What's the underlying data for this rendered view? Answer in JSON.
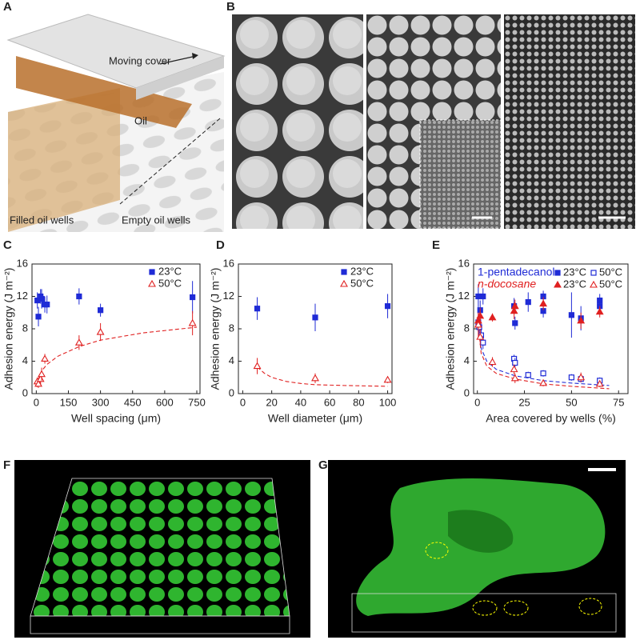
{
  "panels": {
    "a": {
      "label": "A",
      "cover": "Moving cover",
      "oil": "Oil",
      "filled": "Filled oil wells",
      "empty": "Empty oil wells"
    },
    "b": {
      "label": "B"
    },
    "c": {
      "label": "C"
    },
    "d": {
      "label": "D"
    },
    "e": {
      "label": "E"
    },
    "f": {
      "label": "F"
    },
    "g": {
      "label": "G"
    }
  },
  "chart_data": [
    {
      "type": "scatter",
      "x_label": "Well spacing (μm)",
      "y_label": "Adhesion energy (J m⁻²)",
      "xlim": [
        -20,
        765
      ],
      "xticks": [
        0,
        150,
        300,
        450,
        600,
        750
      ],
      "ylim": [
        0,
        16
      ],
      "yticks": [
        0,
        4,
        8,
        12,
        16
      ],
      "series": [
        {
          "name": "23°C",
          "color": "#1f2bd6",
          "marker": "square",
          "filled": true,
          "x": [
            5,
            10,
            20,
            25,
            40,
            50,
            200,
            300,
            730
          ],
          "values": [
            11.5,
            9.5,
            12,
            11.7,
            11,
            11,
            12,
            10.3,
            11.9
          ],
          "errors": [
            1,
            1.2,
            0.9,
            1.2,
            1,
            1.1,
            1,
            0.8,
            2
          ]
        },
        {
          "name": "50°C",
          "color": "#e02020",
          "marker": "triangle",
          "filled": false,
          "x": [
            5,
            10,
            20,
            25,
            40,
            200,
            300,
            730
          ],
          "values": [
            1.5,
            1.2,
            1.8,
            2.4,
            4.3,
            6.3,
            7.6,
            8.7
          ],
          "errors": [
            0.5,
            0.5,
            0.6,
            0.8,
            0.6,
            0.9,
            1.1,
            1.5
          ]
        }
      ],
      "fits": [
        {
          "color": "#e02020",
          "x": [
            3,
            10,
            25,
            50,
            100,
            200,
            300,
            500,
            750
          ],
          "values": [
            0.8,
            1.8,
            2.8,
            3.6,
            4.6,
            5.8,
            6.6,
            7.5,
            8.2
          ]
        }
      ]
    },
    {
      "type": "scatter",
      "x_label": "Well diameter (μm)",
      "y_label": "Adhesion energy (J m⁻²)",
      "xlim": [
        -3,
        103
      ],
      "xticks": [
        0,
        20,
        40,
        60,
        80,
        100
      ],
      "ylim": [
        0,
        16
      ],
      "yticks": [
        0,
        4,
        8,
        12,
        16
      ],
      "series": [
        {
          "name": "23°C",
          "color": "#1f2bd6",
          "marker": "square",
          "filled": true,
          "x": [
            10,
            50,
            100
          ],
          "values": [
            10.5,
            9.4,
            10.8
          ],
          "errors": [
            1.4,
            1.7,
            1.5
          ]
        },
        {
          "name": "50°C",
          "color": "#e02020",
          "marker": "triangle",
          "filled": false,
          "x": [
            10,
            50,
            100
          ],
          "values": [
            3.4,
            1.9,
            1.7
          ],
          "errors": [
            1,
            0.6,
            0.4
          ]
        }
      ],
      "fits": [
        {
          "color": "#e02020",
          "x": [
            10,
            15,
            20,
            30,
            40,
            50,
            70,
            100
          ],
          "values": [
            3.3,
            2.5,
            2,
            1.5,
            1.25,
            1.1,
            1,
            0.9
          ]
        }
      ]
    },
    {
      "type": "grouped-scatter",
      "x_label": "Area covered by wells (%)",
      "y_label": "Adhesion energy (J m⁻²)",
      "xlim": [
        -2,
        80
      ],
      "xticks": [
        0,
        25,
        50,
        75
      ],
      "ylim": [
        0,
        16
      ],
      "yticks": [
        0,
        4,
        8,
        12,
        16
      ],
      "groups": [
        {
          "label": "1-pentadecanol",
          "color": "#1f2bd6",
          "series": [
            {
              "name": "23°C",
              "color": "#1f2bd6",
              "marker": "square",
              "filled": true,
              "x": [
                0.5,
                1.5,
                3,
                19.5,
                20,
                27,
                35,
                35,
                50,
                55,
                65,
                65
              ],
              "values": [
                12,
                10.3,
                12,
                10.8,
                8.7,
                11.3,
                10.2,
                12,
                9.7,
                9.3,
                11.5,
                10.8
              ],
              "errors": [
                1.5,
                1.2,
                1,
                1,
                0.8,
                1.2,
                0.8,
                0.7,
                2.8,
                1.5,
                0.8,
                0.7
              ]
            },
            {
              "name": "50°C",
              "color": "#1f2bd6",
              "marker": "square",
              "filled": false,
              "x": [
                0.5,
                1,
                2,
                3,
                19.5,
                20,
                27,
                35,
                50,
                55,
                65
              ],
              "values": [
                8.8,
                8.2,
                7.2,
                6.3,
                4.3,
                3.8,
                2.3,
                2.5,
                2,
                1.8,
                1.6
              ],
              "errors": [
                1.2,
                1,
                0.8,
                0.8,
                0.5,
                0.6,
                0.4,
                0.4,
                0.4,
                0.4,
                0.4
              ]
            }
          ]
        },
        {
          "label": "n-docosane",
          "color": "#e02020",
          "series": [
            {
              "name": "23°C",
              "color": "#e02020",
              "marker": "triangle",
              "filled": true,
              "x": [
                0.5,
                1.5,
                8,
                19.5,
                20,
                35,
                55,
                65
              ],
              "values": [
                9,
                9.6,
                9.4,
                10.2,
                10.8,
                11.1,
                9,
                10.1
              ],
              "errors": [
                1,
                1,
                0.5,
                1,
                0.8,
                0.8,
                1,
                0.7
              ]
            },
            {
              "name": "50°C",
              "color": "#e02020",
              "marker": "triangle",
              "filled": false,
              "x": [
                0.5,
                1.5,
                8,
                19.5,
                20,
                35,
                55,
                65
              ],
              "values": [
                8.5,
                7,
                3.9,
                3,
                1.9,
                1.3,
                2,
                1.2
              ],
              "errors": [
                1.5,
                1,
                0.6,
                0.6,
                0.6,
                0.4,
                0.6,
                0.4
              ]
            }
          ]
        }
      ],
      "fits": [
        {
          "color": "#1f2bd6",
          "x": [
            0.5,
            2,
            5,
            10,
            20,
            35,
            50,
            70
          ],
          "values": [
            9,
            5.6,
            4,
            3,
            2.2,
            1.6,
            1.3,
            1
          ]
        },
        {
          "color": "#e02020",
          "x": [
            0.5,
            2,
            5,
            10,
            20,
            35,
            50,
            70
          ],
          "values": [
            8.5,
            5,
            3.4,
            2.5,
            1.8,
            1.2,
            0.9,
            0.6
          ]
        }
      ]
    }
  ]
}
